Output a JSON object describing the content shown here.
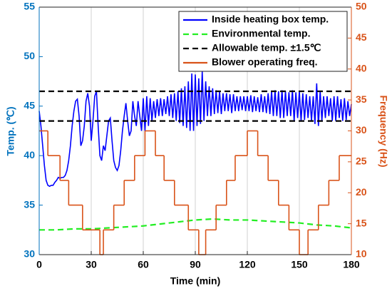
{
  "chart_data": {
    "type": "line",
    "xlabel": "Time (min)",
    "ylabel": "Temp. (℃)",
    "y2label": "Frequency (Hz)",
    "xlim": [
      0,
      180
    ],
    "xticks": [
      0,
      30,
      60,
      90,
      120,
      150,
      180
    ],
    "ylim": [
      30,
      55
    ],
    "yticks": [
      30,
      35,
      40,
      45,
      50,
      55
    ],
    "y2lim": [
      10,
      50
    ],
    "y2ticks": [
      10,
      15,
      20,
      25,
      30,
      35,
      40,
      45,
      50
    ],
    "grid": "x",
    "legend": "upper right",
    "series": [
      {
        "name": "Inside heating box temp.",
        "color": "#0000ff",
        "style": "solid",
        "x": [
          0,
          1,
          2,
          3,
          4,
          5,
          6,
          7,
          8,
          9,
          10,
          11,
          12,
          13,
          14,
          15,
          16,
          17,
          18,
          19,
          20,
          21,
          22,
          23,
          24,
          25,
          26,
          27,
          28,
          29,
          30,
          31,
          32,
          33,
          34,
          35,
          36,
          37,
          38,
          39,
          40,
          41,
          42,
          43,
          44,
          45,
          46,
          47,
          48,
          49,
          50,
          51,
          52,
          53,
          54,
          55,
          56,
          57,
          58,
          59,
          60,
          61,
          62,
          63,
          64,
          65,
          66,
          67,
          68,
          69,
          70,
          71,
          72,
          73,
          74,
          75,
          76,
          77,
          78,
          79,
          80,
          81,
          82,
          83,
          84,
          85,
          86,
          87,
          88,
          89,
          90,
          91,
          92,
          93,
          94,
          95,
          96,
          97,
          98,
          99,
          100,
          101,
          102,
          103,
          104,
          105,
          106,
          107,
          108,
          109,
          110,
          111,
          112,
          113,
          114,
          115,
          116,
          117,
          118,
          119,
          120,
          121,
          122,
          123,
          124,
          125,
          126,
          127,
          128,
          129,
          130,
          131,
          132,
          133,
          134,
          135,
          136,
          137,
          138,
          139,
          140,
          141,
          142,
          143,
          144,
          145,
          146,
          147,
          148,
          149,
          150,
          151,
          152,
          153,
          154,
          155,
          156,
          157,
          158,
          159,
          160,
          161,
          162,
          163,
          164,
          165,
          166,
          167,
          168,
          169,
          170,
          171,
          172,
          173,
          174,
          175,
          176,
          177,
          178,
          179,
          180
        ],
        "values": [
          44.5,
          43,
          41,
          39,
          37.5,
          37,
          36.9,
          37,
          37,
          37.3,
          37.5,
          37.8,
          37.7,
          37.8,
          37.8,
          38,
          38.5,
          39.5,
          41,
          43,
          44.5,
          45.5,
          45.7,
          44,
          41,
          41.5,
          43,
          45.5,
          46.3,
          45,
          41.5,
          43.5,
          46,
          46.5,
          43,
          40,
          39.5,
          41,
          40.5,
          42,
          43.5,
          43.8,
          41.5,
          39.5,
          38.8,
          38.5,
          39,
          40.5,
          42.5,
          44,
          45.3,
          43.5,
          42,
          42.5,
          45.5,
          44,
          43,
          45.5,
          44,
          42.5,
          45.8,
          42.5,
          46,
          43,
          45.8,
          43.5,
          45.5,
          43.8,
          45.7,
          44,
          45.8,
          44,
          45.7,
          44.2,
          46,
          44,
          46.2,
          43.8,
          46.3,
          43.5,
          46.5,
          43.3,
          46.8,
          43,
          47,
          42.8,
          47.5,
          42.5,
          48.3,
          42.5,
          48.2,
          43,
          47.8,
          43.2,
          48.5,
          43.5,
          47.5,
          44,
          47,
          44,
          46.8,
          44.2,
          46.6,
          44.3,
          46.5,
          44.2,
          46.3,
          44.5,
          46.3,
          44.5,
          46.2,
          44.3,
          46.2,
          44.5,
          46,
          44.5,
          46,
          44.6,
          46,
          44.5,
          46,
          44.5,
          46.1,
          44.4,
          46,
          44.5,
          45.9,
          44.4,
          46.2,
          44.4,
          46,
          44.3,
          46.3,
          44.2,
          46.5,
          44,
          46.6,
          44,
          46.5,
          43.8,
          46.6,
          43.8,
          46.5,
          44,
          46.4,
          44,
          46.6,
          43.5,
          46.4,
          43.8,
          46.5,
          43.5,
          46.3,
          43.6,
          46.2,
          43.8,
          46,
          43.5,
          46,
          43.2,
          47.3,
          43,
          46.5,
          43.5,
          46,
          43.8,
          46,
          44,
          45.8,
          43.5,
          46,
          43.5,
          46,
          43.8,
          45.7,
          43.5,
          45.8,
          43.6,
          45.5,
          44,
          45.2
        ]
      },
      {
        "name": "Environmental temp.",
        "color": "#22ee22",
        "style": "dashed",
        "x": [
          0,
          10,
          20,
          30,
          40,
          50,
          60,
          70,
          80,
          90,
          100,
          110,
          120,
          130,
          140,
          150,
          160,
          170,
          180
        ],
        "values": [
          32.5,
          32.5,
          32.6,
          32.6,
          32.7,
          32.8,
          32.9,
          33.1,
          33.3,
          33.5,
          33.6,
          33.5,
          33.5,
          33.4,
          33.3,
          33.2,
          33.0,
          32.9,
          32.7
        ]
      },
      {
        "name": "Allowable temp. ±1.5℃",
        "color": "#000000",
        "style": "dashed",
        "x": [
          0,
          180
        ],
        "values": [
          46.5,
          46.5
        ],
        "lower": [
          43.5,
          43.5
        ]
      },
      {
        "name": "Blower operating freq.",
        "color": "#d95319",
        "style": "steps",
        "axis": "y2",
        "x": [
          0,
          5,
          12,
          17,
          25,
          35,
          37,
          43,
          49,
          55,
          61,
          67,
          72,
          78,
          86,
          92,
          96,
          102,
          108,
          113,
          120,
          126,
          132,
          138,
          144,
          150,
          155,
          161,
          167,
          173
        ],
        "values": [
          30,
          26,
          22,
          18,
          14,
          10,
          14,
          18,
          22,
          26,
          30,
          26,
          22,
          18,
          14,
          10,
          14,
          18,
          22,
          26,
          30,
          26,
          22,
          18,
          14,
          10,
          14,
          18,
          22,
          26
        ]
      }
    ]
  }
}
